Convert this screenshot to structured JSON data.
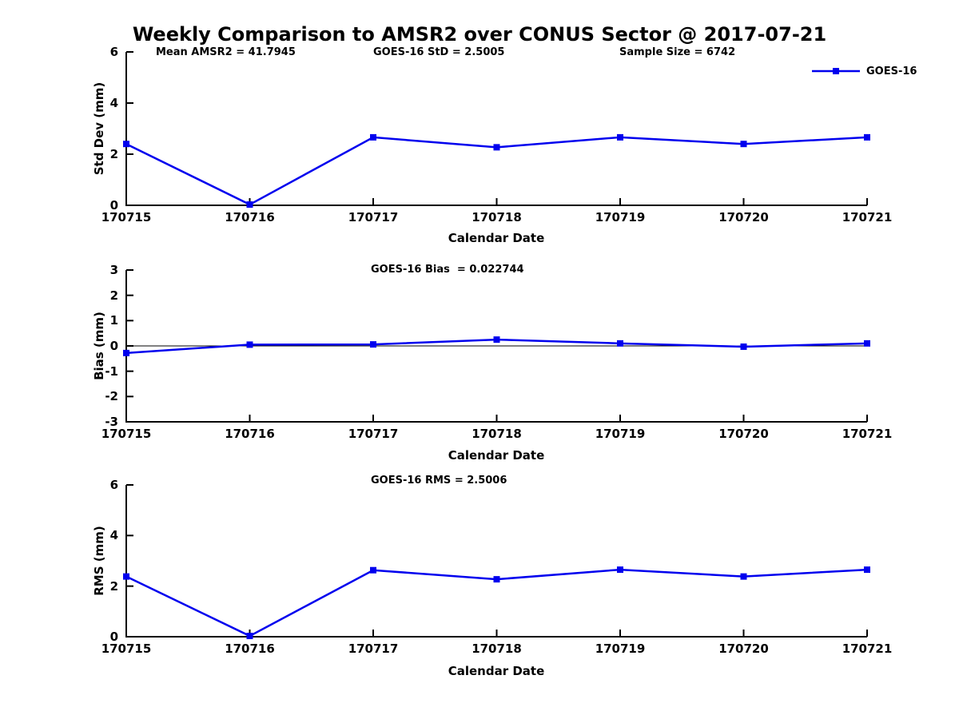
{
  "title": "Weekly Comparison to AMSR2 over CONUS Sector @ 2017-07-21",
  "legend": {
    "label": "GOES-16",
    "position": "top-right"
  },
  "colors": {
    "line": "#0000ee",
    "marker": "#0000ee",
    "axis": "#000000",
    "zero_line": "#000000",
    "background": "#ffffff",
    "text": "#000000"
  },
  "chart_data": [
    {
      "type": "line",
      "ylabel": "Std Dev (mm)",
      "xlabel": "Calendar Date",
      "categories": [
        "170715",
        "170716",
        "170717",
        "170718",
        "170719",
        "170720",
        "170721"
      ],
      "series": [
        {
          "name": "GOES-16",
          "values": [
            2.4,
            0.03,
            2.66,
            2.27,
            2.66,
            2.4,
            2.66
          ]
        }
      ],
      "ylim": [
        0,
        6
      ],
      "yticks": [
        0,
        2,
        4,
        6
      ],
      "zero_line": false,
      "grid": false,
      "annotations": [
        "Mean AMSR2 = 41.7945",
        "GOES-16 StD = 2.5005",
        "Sample Size = 6742"
      ]
    },
    {
      "type": "line",
      "ylabel": "Bias (mm)",
      "xlabel": "Calendar Date",
      "categories": [
        "170715",
        "170716",
        "170717",
        "170718",
        "170719",
        "170720",
        "170721"
      ],
      "series": [
        {
          "name": "GOES-16",
          "values": [
            -0.28,
            0.05,
            0.06,
            0.25,
            0.1,
            -0.03,
            0.1
          ]
        }
      ],
      "ylim": [
        -3,
        3
      ],
      "yticks": [
        -3,
        -2,
        -1,
        0,
        1,
        2,
        3
      ],
      "zero_line": true,
      "grid": false,
      "annotations": [
        "GOES-16 Bias  = 0.022744"
      ]
    },
    {
      "type": "line",
      "ylabel": "RMS (mm)",
      "xlabel": "Calendar Date",
      "categories": [
        "170715",
        "170716",
        "170717",
        "170718",
        "170719",
        "170720",
        "170721"
      ],
      "series": [
        {
          "name": "GOES-16",
          "values": [
            2.38,
            0.03,
            2.63,
            2.27,
            2.65,
            2.38,
            2.65
          ]
        }
      ],
      "ylim": [
        0,
        6
      ],
      "yticks": [
        0,
        2,
        4,
        6
      ],
      "zero_line": false,
      "grid": false,
      "annotations": [
        "GOES-16 RMS = 2.5006"
      ]
    }
  ]
}
